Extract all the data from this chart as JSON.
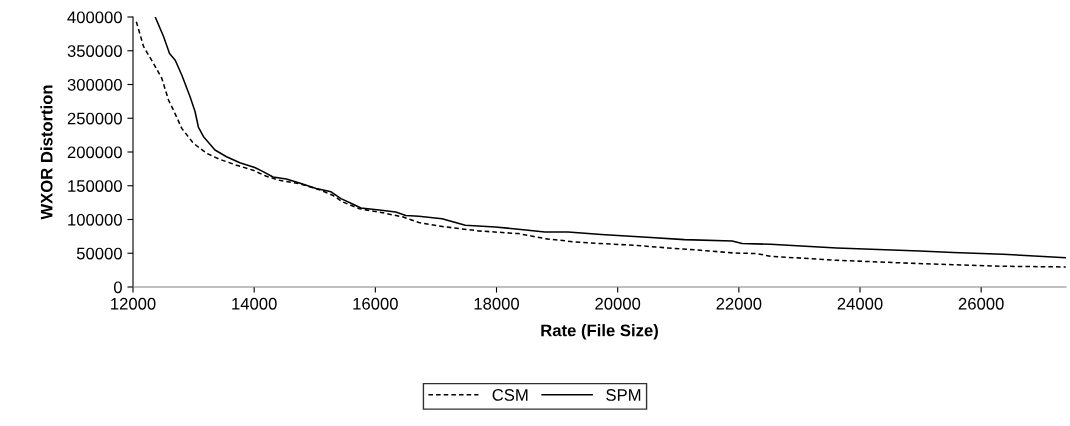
{
  "chart_data": {
    "type": "line",
    "xlabel": "Rate (File Size)",
    "ylabel": "WXOR Distortion",
    "xlim": [
      12000,
      27400
    ],
    "xticks": [
      12000,
      14000,
      16000,
      18000,
      20000,
      22000,
      24000,
      26000
    ],
    "ylim": [
      0,
      400000
    ],
    "yticks": [
      0,
      50000,
      100000,
      150000,
      200000,
      250000,
      300000,
      350000,
      400000
    ],
    "grid": false,
    "legend": "bottom",
    "marker": "none",
    "series": [
      {
        "name": "CSM",
        "color": "#000000",
        "line_style": "dashed",
        "x": [
          12055,
          12175,
          12340,
          12476,
          12586,
          12668,
          12805,
          12997,
          13216,
          13435,
          13709,
          13982,
          14201,
          14420,
          14749,
          15077,
          15296,
          15461,
          15735,
          16064,
          16447,
          16719,
          17157,
          17704,
          18361,
          18799,
          19292,
          19730,
          20277,
          20825,
          21372,
          21919,
          22300,
          22520,
          23616,
          24712,
          25534,
          26356,
          27397
        ],
        "values": [
          393000,
          356000,
          331000,
          309000,
          277000,
          262000,
          235000,
          213000,
          198000,
          189000,
          180500,
          173000,
          164000,
          158000,
          153000,
          144000,
          136000,
          126000,
          116000,
          111000,
          104000,
          95500,
          89000,
          83100,
          79100,
          71700,
          66800,
          64300,
          61800,
          57900,
          54400,
          50400,
          49500,
          45500,
          39600,
          35600,
          33100,
          30700,
          29700
        ]
      },
      {
        "name": "SPM",
        "color": "#000000",
        "line_style": "solid",
        "x": [
          12367,
          12504,
          12603,
          12697,
          12805,
          12942,
          13024,
          13079,
          13161,
          13353,
          13544,
          13763,
          14010,
          14147,
          14311,
          14530,
          14749,
          15023,
          15269,
          15433,
          15625,
          15762,
          16064,
          16337,
          16502,
          16719,
          17102,
          17485,
          17978,
          18361,
          18799,
          19182,
          19730,
          20550,
          21100,
          21890,
          22055,
          22520,
          23616,
          24986,
          25534,
          26356,
          27397
        ],
        "values": [
          400000,
          371000,
          346000,
          336000,
          314000,
          282000,
          260000,
          237000,
          223000,
          203000,
          193000,
          184000,
          177000,
          171000,
          163000,
          160000,
          154000,
          146000,
          141000,
          131000,
          123000,
          117000,
          114000,
          111000,
          106000,
          104900,
          101000,
          91500,
          89000,
          85600,
          81600,
          81600,
          77700,
          73200,
          70200,
          68300,
          64300,
          63300,
          57900,
          53400,
          51000,
          48500,
          43500
        ]
      }
    ]
  }
}
